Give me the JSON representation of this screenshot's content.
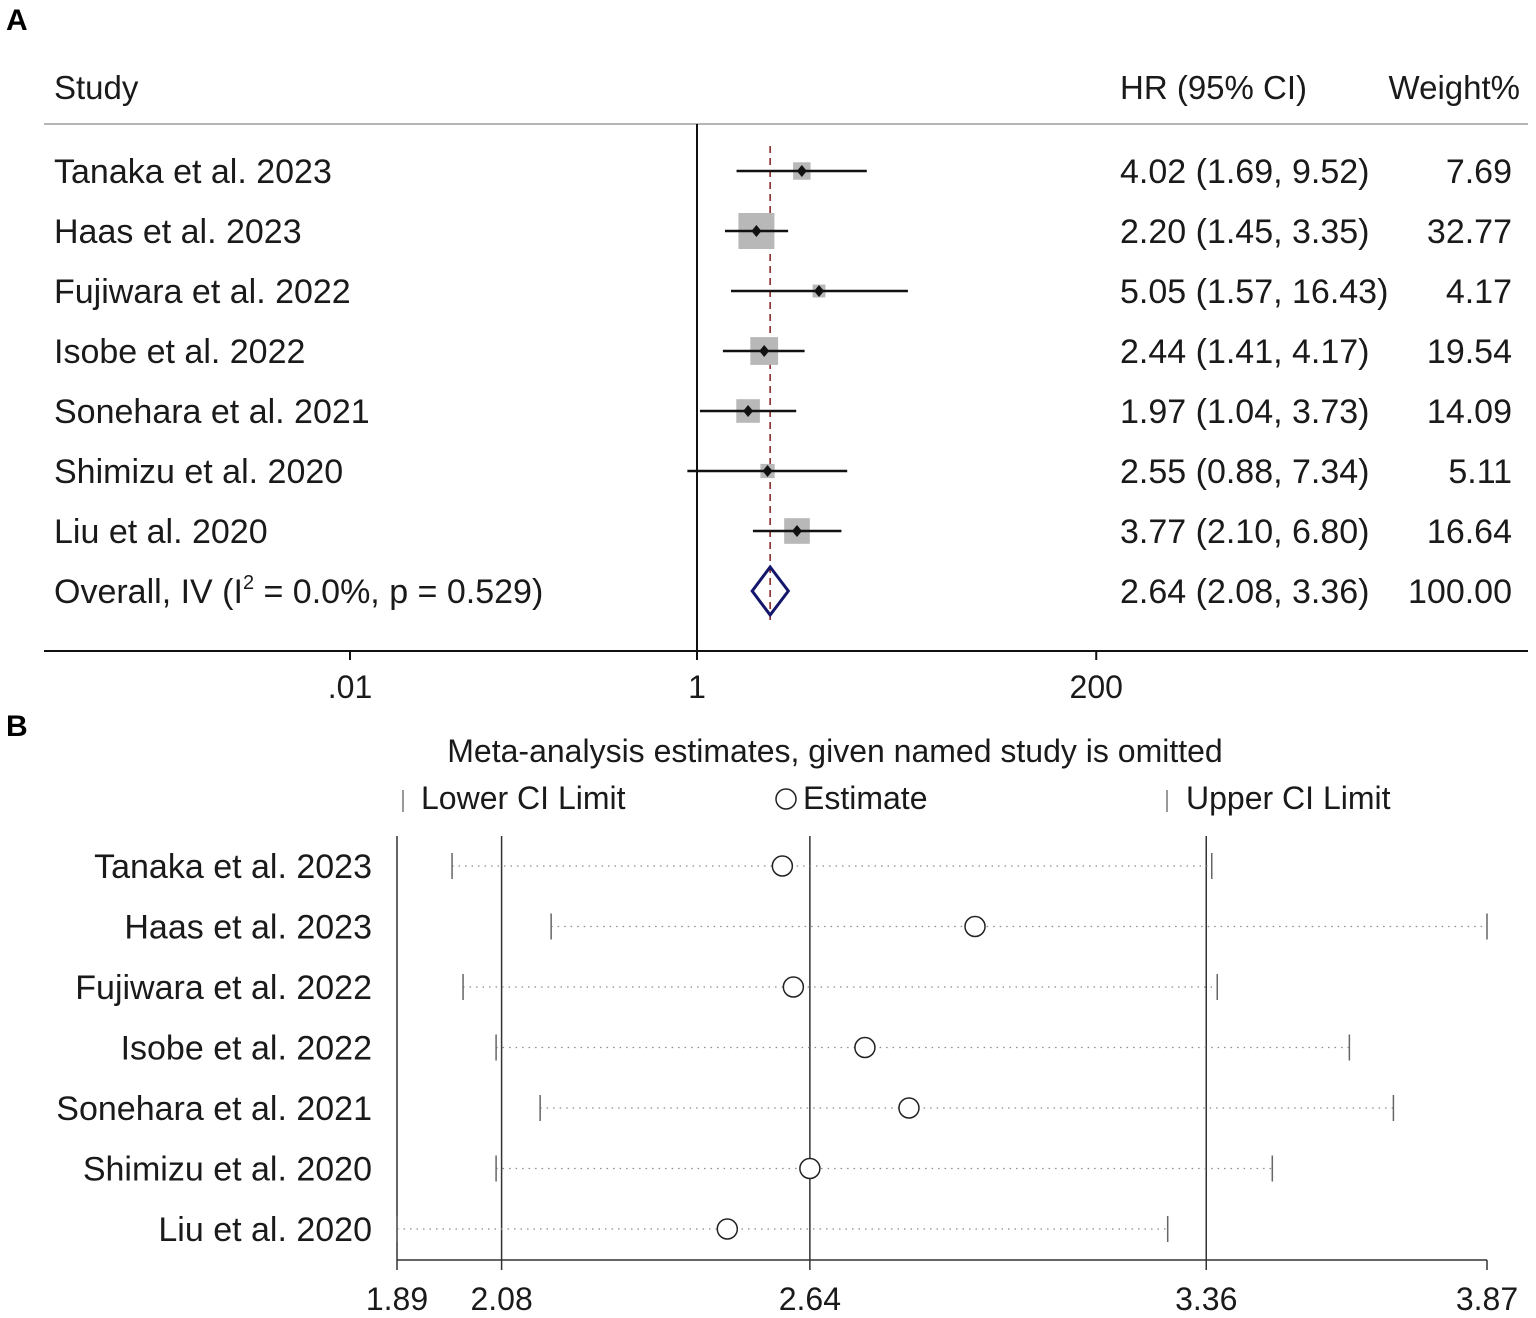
{
  "chart_data": [
    {
      "type": "forest",
      "panel_label": "A",
      "header": {
        "study": "Study",
        "hr": "HR (95% CI)",
        "weight": "Weight%"
      },
      "x_scale": "log",
      "x_ticks": [
        {
          "value": 0.01,
          "label": ".01"
        },
        {
          "value": 1,
          "label": "1"
        },
        {
          "value": 200,
          "label": "200"
        }
      ],
      "reference_line": 1,
      "overall_line": 2.64,
      "studies": [
        {
          "name": "Tanaka et al. 2023",
          "hr": 4.02,
          "lo": 1.69,
          "hi": 9.52,
          "weight": 7.69,
          "hr_text": "4.02 (1.69, 9.52)",
          "weight_text": "7.69"
        },
        {
          "name": "Haas et al. 2023",
          "hr": 2.2,
          "lo": 1.45,
          "hi": 3.35,
          "weight": 32.77,
          "hr_text": "2.20 (1.45, 3.35)",
          "weight_text": "32.77"
        },
        {
          "name": "Fujiwara et al. 2022",
          "hr": 5.05,
          "lo": 1.57,
          "hi": 16.43,
          "weight": 4.17,
          "hr_text": "5.05 (1.57, 16.43)",
          "weight_text": "4.17"
        },
        {
          "name": "Isobe et al. 2022",
          "hr": 2.44,
          "lo": 1.41,
          "hi": 4.17,
          "weight": 19.54,
          "hr_text": "2.44 (1.41, 4.17)",
          "weight_text": "19.54"
        },
        {
          "name": "Sonehara et al. 2021",
          "hr": 1.97,
          "lo": 1.04,
          "hi": 3.73,
          "weight": 14.09,
          "hr_text": "1.97 (1.04, 3.73)",
          "weight_text": "14.09"
        },
        {
          "name": "Shimizu et al. 2020",
          "hr": 2.55,
          "lo": 0.88,
          "hi": 7.34,
          "weight": 5.11,
          "hr_text": "2.55 (0.88, 7.34)",
          "weight_text": "5.11"
        },
        {
          "name": "Liu et al. 2020",
          "hr": 3.77,
          "lo": 2.1,
          "hi": 6.8,
          "weight": 16.64,
          "hr_text": "3.77 (2.10, 6.80)",
          "weight_text": "16.64"
        }
      ],
      "overall": {
        "label_prefix": "Overall, IV (I",
        "label_sup": "2",
        "label_suffix": " = 0.0%, p = 0.529)",
        "hr": 2.64,
        "lo": 2.08,
        "hi": 3.36,
        "hr_text": "2.64 (2.08, 3.36)",
        "weight_text": "100.00"
      }
    },
    {
      "type": "scatter",
      "panel_label": "B",
      "title": "Meta-analysis estimates, given named study is omitted",
      "legend": {
        "lower": "Lower CI Limit",
        "estimate": "Estimate",
        "upper": "Upper CI Limit"
      },
      "xlim": [
        1.89,
        3.87
      ],
      "reference_lines": [
        2.08,
        2.64,
        3.36
      ],
      "x_ticks": [
        {
          "value": 1.89,
          "label": "1.89"
        },
        {
          "value": 2.08,
          "label": "2.08"
        },
        {
          "value": 2.64,
          "label": "2.64"
        },
        {
          "value": 3.36,
          "label": "3.36"
        },
        {
          "value": 3.87,
          "label": "3.87"
        }
      ],
      "rows": [
        {
          "name": "Tanaka et al. 2023",
          "lower": 1.99,
          "estimate": 2.59,
          "upper": 3.37
        },
        {
          "name": "Haas et al. 2023",
          "lower": 2.17,
          "estimate": 2.94,
          "upper": 3.87
        },
        {
          "name": "Fujiwara et al. 2022",
          "lower": 2.01,
          "estimate": 2.61,
          "upper": 3.38
        },
        {
          "name": "Isobe et al. 2022",
          "lower": 2.07,
          "estimate": 2.74,
          "upper": 3.62
        },
        {
          "name": "Sonehara et al. 2021",
          "lower": 2.15,
          "estimate": 2.82,
          "upper": 3.7
        },
        {
          "name": "Shimizu et al. 2020",
          "lower": 2.07,
          "estimate": 2.64,
          "upper": 3.48
        },
        {
          "name": "Liu et al. 2020",
          "lower": 1.89,
          "estimate": 2.49,
          "upper": 3.29
        }
      ]
    }
  ]
}
